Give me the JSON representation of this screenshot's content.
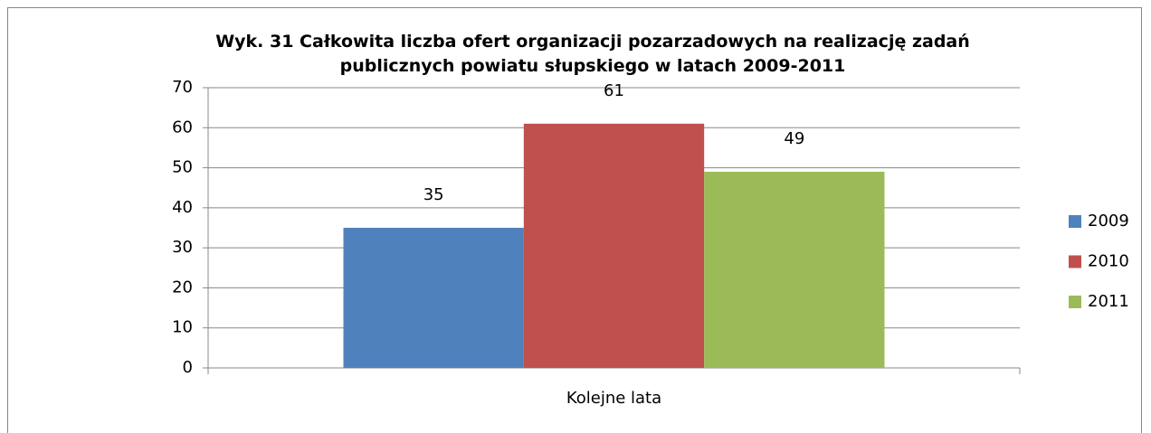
{
  "chart_data": {
    "type": "bar",
    "title": "Wyk. 31 Całkowita liczba ofert organizacji pozarzadowych na realizację zadań publicznych powiatu słupskiego w latach 2009-2011",
    "categories": [
      "Kolejne lata"
    ],
    "series": [
      {
        "name": "2009",
        "color": "#4f81bd",
        "values": [
          35
        ]
      },
      {
        "name": "2010",
        "color": "#c0504d",
        "values": [
          61
        ]
      },
      {
        "name": "2011",
        "color": "#9bbb59",
        "values": [
          49
        ]
      }
    ],
    "ylim": [
      0,
      70
    ],
    "yticks": [
      0,
      10,
      20,
      30,
      40,
      50,
      60,
      70
    ],
    "grid": true,
    "legend": "right",
    "data_labels": true
  }
}
